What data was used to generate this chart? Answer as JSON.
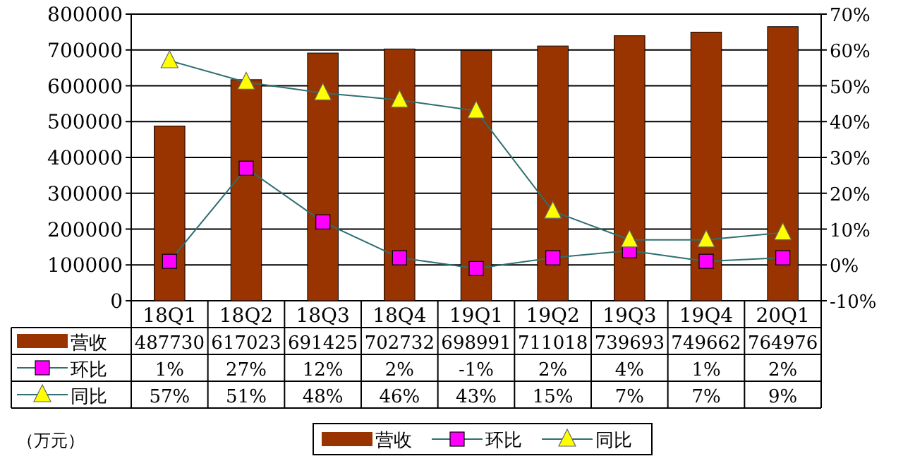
{
  "chart_data": {
    "type": "bar",
    "categories": [
      "18Q1",
      "18Q2",
      "18Q3",
      "18Q4",
      "19Q1",
      "19Q2",
      "19Q3",
      "19Q4",
      "20Q1"
    ],
    "series": [
      {
        "name": "营收",
        "color": "#993300",
        "values": [
          487730,
          617023,
          691425,
          702732,
          698991,
          711018,
          739693,
          749662,
          764976
        ]
      },
      {
        "name": "环比",
        "type": "line",
        "axis": "y2",
        "marker": "square",
        "color": "#ff00ff",
        "values": [
          1,
          27,
          12,
          2,
          -1,
          2,
          4,
          1,
          2
        ],
        "value_labels": [
          "1%",
          "27%",
          "12%",
          "2%",
          "-1%",
          "2%",
          "4%",
          "1%",
          "2%"
        ]
      },
      {
        "name": "同比",
        "type": "line",
        "axis": "y2",
        "marker": "triangle",
        "color": "#ffff00",
        "values": [
          57,
          51,
          48,
          46,
          43,
          15,
          7,
          7,
          9
        ],
        "value_labels": [
          "57%",
          "51%",
          "48%",
          "46%",
          "43%",
          "15%",
          "7%",
          "7%",
          "9%"
        ]
      }
    ],
    "data_labels": true,
    "ylim": [
      0,
      800000
    ],
    "yticks": [
      0,
      100000,
      200000,
      300000,
      400000,
      500000,
      600000,
      700000,
      800000
    ],
    "y2lim": [
      -10,
      70
    ],
    "y2ticks": [
      {
        "value": -10,
        "label": "-10%"
      },
      {
        "value": 0,
        "label": "0%"
      },
      {
        "value": 10,
        "label": "10%"
      },
      {
        "value": 20,
        "label": "20%"
      },
      {
        "value": 30,
        "label": "30%"
      },
      {
        "value": 40,
        "label": "40%"
      },
      {
        "value": 50,
        "label": "50%"
      },
      {
        "value": 60,
        "label": "60%"
      },
      {
        "value": 70,
        "label": "70%"
      }
    ],
    "grid": "y",
    "legend": "bottom",
    "annotations": [
      "（万元）"
    ]
  }
}
